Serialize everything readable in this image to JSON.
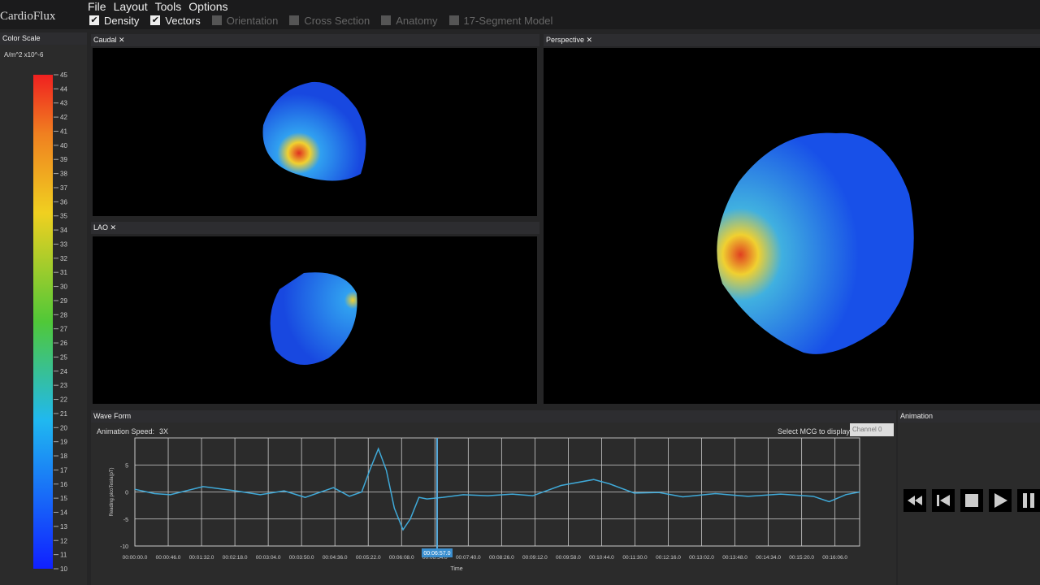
{
  "app": {
    "name": "CardioFlux"
  },
  "menu": [
    "File",
    "Layout",
    "Tools",
    "Options"
  ],
  "toggles": [
    {
      "label": "Density",
      "checked": true
    },
    {
      "label": "Vectors",
      "checked": true
    },
    {
      "label": "Orientation",
      "checked": false
    },
    {
      "label": "Cross Section",
      "checked": false
    },
    {
      "label": "Anatomy",
      "checked": false
    },
    {
      "label": "17-Segment Model",
      "checked": false
    }
  ],
  "color_scale": {
    "title": "Color Scale",
    "unit": "A/m^2 x10^-6",
    "range": [
      10,
      45
    ],
    "ticks": [
      10,
      11,
      12,
      13,
      14,
      15,
      16,
      17,
      18,
      19,
      20,
      21,
      22,
      23,
      24,
      25,
      26,
      27,
      28,
      29,
      30,
      31,
      32,
      33,
      34,
      35,
      36,
      37,
      38,
      39,
      40,
      41,
      42,
      43,
      44,
      45
    ]
  },
  "panels": {
    "caudal": "Caudal",
    "lao": "LAO",
    "perspective": "Perspective"
  },
  "waveform": {
    "title": "Wave Form",
    "speed_label": "Animation Speed:",
    "speed": "3X",
    "select_label": "Select MCG to display",
    "channel": "Channel 0",
    "y_label": "Reading picoTesla(pT)",
    "x_label": "Time",
    "ylim": [
      -10,
      10
    ],
    "yticks": [
      -10,
      -5,
      0,
      5
    ],
    "xlim": [
      0,
      1000
    ],
    "xticks": [
      {
        "value": 0,
        "label": "00:00:00.0"
      },
      {
        "value": 46,
        "label": "00:00:46.0"
      },
      {
        "value": 92,
        "label": "00:01:32.0"
      },
      {
        "value": 138,
        "label": "00:02:18.0"
      },
      {
        "value": 184,
        "label": "00:03:04.0"
      },
      {
        "value": 230,
        "label": "00:03:50.0"
      },
      {
        "value": 276,
        "label": "00:04:36.0"
      },
      {
        "value": 322,
        "label": "00:05:22.0"
      },
      {
        "value": 368,
        "label": "00:06:08.0"
      },
      {
        "value": 414,
        "label": "00:06:54.0"
      },
      {
        "value": 460,
        "label": "00:07:40.0"
      },
      {
        "value": 506,
        "label": "00:08:26.0"
      },
      {
        "value": 552,
        "label": "00:09:12.0"
      },
      {
        "value": 598,
        "label": "00:09:58.0"
      },
      {
        "value": 644,
        "label": "00:10:44.0"
      },
      {
        "value": 690,
        "label": "00:11:30.0"
      },
      {
        "value": 736,
        "label": "00:12:16.0"
      },
      {
        "value": 782,
        "label": "00:13:02.0"
      },
      {
        "value": 828,
        "label": "00:13:48.0"
      },
      {
        "value": 874,
        "label": "00:14:34.0"
      },
      {
        "value": 920,
        "label": "00:15:20.0"
      },
      {
        "value": 966,
        "label": "00:16:06.0"
      }
    ],
    "cursor": {
      "value": 417,
      "label": "00:06:57.0"
    },
    "series": {
      "color": "#3fa9d8",
      "x": [
        0,
        27,
        49,
        94,
        139,
        173,
        206,
        235,
        274,
        296,
        313,
        324,
        336,
        347,
        358,
        370,
        380,
        392,
        403,
        425,
        453,
        487,
        521,
        549,
        588,
        633,
        655,
        689,
        723,
        756,
        801,
        846,
        891,
        936,
        958,
        981,
        1000
      ],
      "values": [
        0.5,
        -0.3,
        -0.5,
        1,
        0.2,
        -0.5,
        0.2,
        -1,
        0.8,
        -0.8,
        0,
        4,
        8,
        4,
        -3,
        -7,
        -5,
        -1,
        -1.3,
        -1,
        -0.5,
        -0.7,
        -0.4,
        -0.7,
        1.2,
        2.3,
        1.5,
        -0.2,
        -0.1,
        -0.9,
        -0.3,
        -0.8,
        -0.4,
        -0.8,
        -1.8,
        -0.5,
        0
      ]
    }
  },
  "animation": {
    "title": "Animation"
  }
}
